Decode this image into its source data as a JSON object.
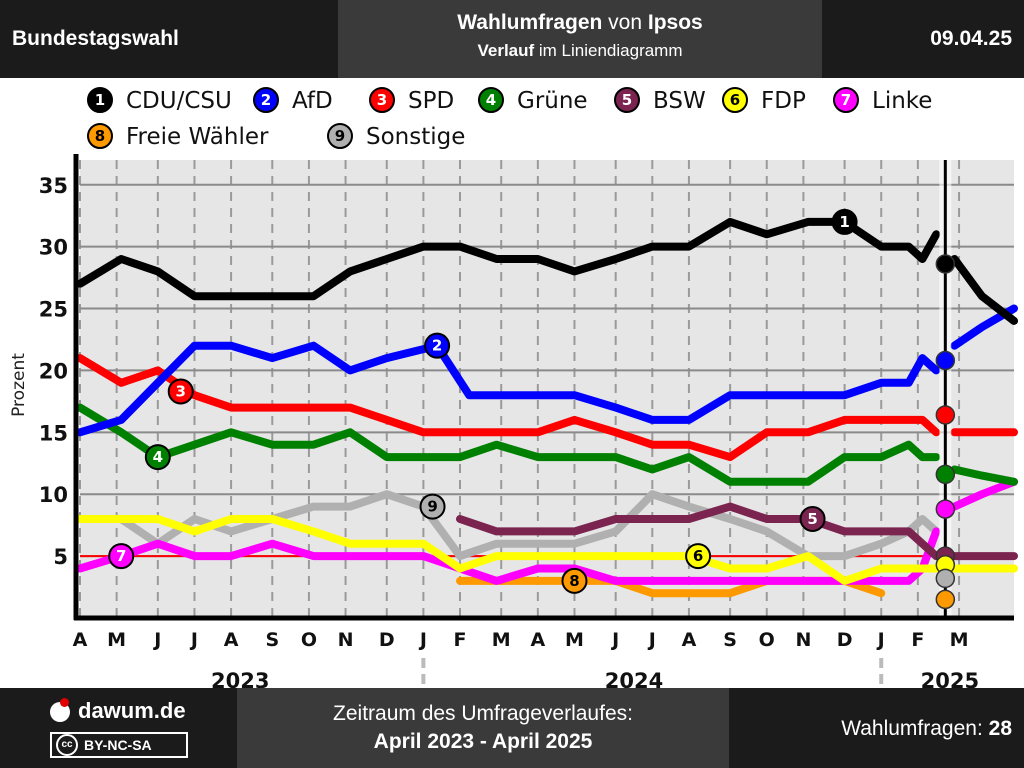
{
  "header": {
    "left": "Bundestagswahl",
    "title_bold_1": "Wahlumfragen",
    "title_connector": " von ",
    "title_bold_2": "Ipsos",
    "subtitle_bold": "Verlauf",
    "subtitle_rest": " im Liniendiagramm",
    "date": "09.04.25"
  },
  "footer": {
    "brand": "dawum.de",
    "license": "BY-NC-SA",
    "license_badge": "cc",
    "period_label": "Zeitraum des Umfrageverlaufes:",
    "period_value": "April 2023 - April 2025",
    "count_label": "Wahlumfragen: ",
    "count_value": "28"
  },
  "chart_data": {
    "type": "line",
    "title": "Wahlumfragen von Ipsos",
    "ylabel": "Prozent",
    "ylim": [
      0,
      37
    ],
    "yticks": [
      5,
      10,
      15,
      20,
      25,
      30,
      35
    ],
    "threshold": 5,
    "xlim": [
      2023.25,
      2025.29
    ],
    "month_ticks": [
      {
        "label": "A",
        "x": 2023.25
      },
      {
        "label": "M",
        "x": 2023.33
      },
      {
        "label": "J",
        "x": 2023.42
      },
      {
        "label": "J",
        "x": 2023.5
      },
      {
        "label": "A",
        "x": 2023.58
      },
      {
        "label": "S",
        "x": 2023.67
      },
      {
        "label": "O",
        "x": 2023.75
      },
      {
        "label": "N",
        "x": 2023.83
      },
      {
        "label": "D",
        "x": 2023.92
      },
      {
        "label": "J",
        "x": 2024.0
      },
      {
        "label": "F",
        "x": 2024.08
      },
      {
        "label": "M",
        "x": 2024.17
      },
      {
        "label": "A",
        "x": 2024.25
      },
      {
        "label": "M",
        "x": 2024.33
      },
      {
        "label": "J",
        "x": 2024.42
      },
      {
        "label": "J",
        "x": 2024.5
      },
      {
        "label": "A",
        "x": 2024.58
      },
      {
        "label": "S",
        "x": 2024.67
      },
      {
        "label": "O",
        "x": 2024.75
      },
      {
        "label": "N",
        "x": 2024.83
      },
      {
        "label": "D",
        "x": 2024.92
      },
      {
        "label": "J",
        "x": 2025.0
      },
      {
        "label": "F",
        "x": 2025.08
      },
      {
        "label": "M",
        "x": 2025.17
      }
    ],
    "year_labels": [
      {
        "label": "2023",
        "x": 2023.6
      },
      {
        "label": "2024",
        "x": 2024.46
      },
      {
        "label": "2025",
        "x": 2025.15
      }
    ],
    "year_dividers": [
      2024.0,
      2025.0
    ],
    "election": {
      "x": 2025.14
    },
    "series": [
      {
        "id": 1,
        "name": "CDU/CSU",
        "color": "#000000",
        "badge": 1,
        "points": [
          [
            2023.25,
            27
          ],
          [
            2023.34,
            29
          ],
          [
            2023.42,
            28
          ],
          [
            2023.5,
            26
          ],
          [
            2023.58,
            26
          ],
          [
            2023.67,
            26
          ],
          [
            2023.76,
            26
          ],
          [
            2023.84,
            28
          ],
          [
            2023.92,
            29
          ],
          [
            2024.0,
            30
          ],
          [
            2024.08,
            30
          ],
          [
            2024.16,
            29
          ],
          [
            2024.25,
            29
          ],
          [
            2024.33,
            28
          ],
          [
            2024.42,
            29
          ],
          [
            2024.5,
            30
          ],
          [
            2024.58,
            30
          ],
          [
            2024.67,
            32
          ],
          [
            2024.75,
            31
          ],
          [
            2024.84,
            32
          ],
          [
            2024.92,
            32
          ],
          [
            2025.0,
            30
          ],
          [
            2025.06,
            30
          ],
          [
            2025.09,
            29
          ],
          [
            2025.12,
            31
          ]
        ],
        "post": [
          [
            2025.16,
            29
          ],
          [
            2025.22,
            26
          ],
          [
            2025.29,
            24
          ]
        ],
        "result": 28.6,
        "label_at": [
          2024.92,
          32
        ]
      },
      {
        "id": 2,
        "name": "AfD",
        "color": "#0000ff",
        "badge": 2,
        "points": [
          [
            2023.25,
            15
          ],
          [
            2023.34,
            16
          ],
          [
            2023.42,
            19
          ],
          [
            2023.5,
            22
          ],
          [
            2023.58,
            22
          ],
          [
            2023.67,
            21
          ],
          [
            2023.76,
            22
          ],
          [
            2023.84,
            20
          ],
          [
            2023.92,
            21
          ],
          [
            2024.03,
            22
          ],
          [
            2024.1,
            18
          ],
          [
            2024.16,
            18
          ],
          [
            2024.25,
            18
          ],
          [
            2024.33,
            18
          ],
          [
            2024.42,
            17
          ],
          [
            2024.5,
            16
          ],
          [
            2024.58,
            16
          ],
          [
            2024.67,
            18
          ],
          [
            2024.75,
            18
          ],
          [
            2024.84,
            18
          ],
          [
            2024.92,
            18
          ],
          [
            2025.0,
            19
          ],
          [
            2025.06,
            19
          ],
          [
            2025.09,
            21
          ],
          [
            2025.12,
            20
          ]
        ],
        "post": [
          [
            2025.16,
            22
          ],
          [
            2025.22,
            23.5
          ],
          [
            2025.29,
            25
          ]
        ],
        "result": 20.8,
        "label_at": [
          2024.03,
          22
        ]
      },
      {
        "id": 3,
        "name": "SPD",
        "color": "#ff0000",
        "badge": 3,
        "points": [
          [
            2023.25,
            21
          ],
          [
            2023.34,
            19
          ],
          [
            2023.42,
            20
          ],
          [
            2023.5,
            18
          ],
          [
            2023.58,
            17
          ],
          [
            2023.67,
            17
          ],
          [
            2023.76,
            17
          ],
          [
            2023.84,
            17
          ],
          [
            2023.92,
            16
          ],
          [
            2024.0,
            15
          ],
          [
            2024.08,
            15
          ],
          [
            2024.16,
            15
          ],
          [
            2024.25,
            15
          ],
          [
            2024.33,
            16
          ],
          [
            2024.42,
            15
          ],
          [
            2024.5,
            14
          ],
          [
            2024.58,
            14
          ],
          [
            2024.67,
            13
          ],
          [
            2024.75,
            15
          ],
          [
            2024.84,
            15
          ],
          [
            2024.92,
            16
          ],
          [
            2025.0,
            16
          ],
          [
            2025.06,
            16
          ],
          [
            2025.09,
            16
          ],
          [
            2025.12,
            15
          ]
        ],
        "post": [
          [
            2025.16,
            15
          ],
          [
            2025.22,
            15
          ],
          [
            2025.29,
            15
          ]
        ],
        "result": 16.4,
        "label_at": [
          2023.47,
          18.3
        ]
      },
      {
        "id": 4,
        "name": "Grüne",
        "color": "#008000",
        "badge": 4,
        "points": [
          [
            2023.25,
            17
          ],
          [
            2023.34,
            15
          ],
          [
            2023.42,
            13
          ],
          [
            2023.5,
            14
          ],
          [
            2023.58,
            15
          ],
          [
            2023.67,
            14
          ],
          [
            2023.76,
            14
          ],
          [
            2023.84,
            15
          ],
          [
            2023.92,
            13
          ],
          [
            2024.0,
            13
          ],
          [
            2024.08,
            13
          ],
          [
            2024.16,
            14
          ],
          [
            2024.25,
            13
          ],
          [
            2024.33,
            13
          ],
          [
            2024.42,
            13
          ],
          [
            2024.5,
            12
          ],
          [
            2024.58,
            13
          ],
          [
            2024.67,
            11
          ],
          [
            2024.75,
            11
          ],
          [
            2024.84,
            11
          ],
          [
            2024.92,
            13
          ],
          [
            2025.0,
            13
          ],
          [
            2025.06,
            14
          ],
          [
            2025.09,
            13
          ],
          [
            2025.12,
            13
          ]
        ],
        "post": [
          [
            2025.16,
            12
          ],
          [
            2025.22,
            11.5
          ],
          [
            2025.29,
            11
          ]
        ],
        "result": 11.6,
        "label_at": [
          2023.42,
          13
        ]
      },
      {
        "id": 5,
        "name": "BSW",
        "color": "#7b2450",
        "badge": 5,
        "points": [
          [
            2024.08,
            8
          ],
          [
            2024.16,
            7
          ],
          [
            2024.25,
            7
          ],
          [
            2024.33,
            7
          ],
          [
            2024.42,
            8
          ],
          [
            2024.5,
            8
          ],
          [
            2024.58,
            8
          ],
          [
            2024.67,
            9
          ],
          [
            2024.75,
            8
          ],
          [
            2024.84,
            8
          ],
          [
            2024.92,
            7
          ],
          [
            2025.0,
            7
          ],
          [
            2025.06,
            7
          ],
          [
            2025.09,
            6
          ],
          [
            2025.12,
            5
          ]
        ],
        "post": [
          [
            2025.16,
            5
          ],
          [
            2025.22,
            5
          ],
          [
            2025.29,
            5
          ]
        ],
        "result": 5.0,
        "label_at": [
          2024.85,
          8
        ]
      },
      {
        "id": 6,
        "name": "FDP",
        "color": "#ffff00",
        "badge": 6,
        "points": [
          [
            2023.25,
            8
          ],
          [
            2023.34,
            8
          ],
          [
            2023.42,
            8
          ],
          [
            2023.5,
            7
          ],
          [
            2023.58,
            8
          ],
          [
            2023.67,
            8
          ],
          [
            2023.76,
            7
          ],
          [
            2023.84,
            6
          ],
          [
            2023.92,
            6
          ],
          [
            2024.0,
            6
          ],
          [
            2024.08,
            4
          ],
          [
            2024.16,
            5
          ],
          [
            2024.25,
            5
          ],
          [
            2024.33,
            5
          ],
          [
            2024.42,
            5
          ],
          [
            2024.5,
            5
          ],
          [
            2024.58,
            5
          ],
          [
            2024.67,
            4
          ],
          [
            2024.75,
            4
          ],
          [
            2024.84,
            5
          ],
          [
            2024.92,
            3
          ],
          [
            2025.0,
            4
          ],
          [
            2025.06,
            4
          ],
          [
            2025.09,
            4
          ],
          [
            2025.12,
            4
          ]
        ],
        "post": [
          [
            2025.16,
            4
          ],
          [
            2025.22,
            4
          ],
          [
            2025.29,
            4
          ]
        ],
        "result": 4.3,
        "label_at": [
          2024.6,
          5
        ]
      },
      {
        "id": 7,
        "name": "Linke",
        "color": "#ff00ff",
        "badge": 7,
        "points": [
          [
            2023.25,
            4
          ],
          [
            2023.34,
            5
          ],
          [
            2023.42,
            6
          ],
          [
            2023.5,
            5
          ],
          [
            2023.58,
            5
          ],
          [
            2023.67,
            6
          ],
          [
            2023.76,
            5
          ],
          [
            2023.84,
            5
          ],
          [
            2023.92,
            5
          ],
          [
            2024.0,
            5
          ],
          [
            2024.08,
            4
          ],
          [
            2024.16,
            3
          ],
          [
            2024.25,
            4
          ],
          [
            2024.33,
            4
          ],
          [
            2024.42,
            3
          ],
          [
            2024.5,
            3
          ],
          [
            2024.58,
            3
          ],
          [
            2024.67,
            3
          ],
          [
            2024.75,
            3
          ],
          [
            2024.84,
            3
          ],
          [
            2024.92,
            3
          ],
          [
            2025.0,
            3
          ],
          [
            2025.06,
            3
          ],
          [
            2025.09,
            4
          ],
          [
            2025.12,
            7
          ]
        ],
        "post": [
          [
            2025.16,
            9
          ],
          [
            2025.22,
            10
          ],
          [
            2025.29,
            11
          ]
        ],
        "result": 8.8,
        "label_at": [
          2023.34,
          5
        ]
      },
      {
        "id": 8,
        "name": "Freie Wähler",
        "color": "#ff9900",
        "badge": 8,
        "points": [
          [
            2024.08,
            3
          ],
          [
            2024.16,
            3
          ],
          [
            2024.25,
            3
          ],
          [
            2024.33,
            3
          ],
          [
            2024.42,
            3
          ],
          [
            2024.5,
            2
          ],
          [
            2024.58,
            2
          ],
          [
            2024.67,
            2
          ],
          [
            2024.75,
            3
          ],
          [
            2024.84,
            3
          ],
          [
            2024.92,
            3
          ],
          [
            2025.0,
            2
          ]
        ],
        "post": [],
        "result": 1.5,
        "label_at": [
          2024.33,
          3
        ]
      },
      {
        "id": 9,
        "name": "Sonstige",
        "color": "#b0b0b0",
        "badge": 9,
        "points": [
          [
            2023.25,
            8
          ],
          [
            2023.34,
            8
          ],
          [
            2023.42,
            6
          ],
          [
            2023.5,
            8
          ],
          [
            2023.58,
            7
          ],
          [
            2023.67,
            8
          ],
          [
            2023.76,
            9
          ],
          [
            2023.84,
            9
          ],
          [
            2023.92,
            10
          ],
          [
            2024.0,
            9
          ],
          [
            2024.08,
            5
          ],
          [
            2024.16,
            6
          ],
          [
            2024.25,
            6
          ],
          [
            2024.33,
            6
          ],
          [
            2024.42,
            7
          ],
          [
            2024.5,
            10
          ],
          [
            2024.58,
            9
          ],
          [
            2024.67,
            8
          ],
          [
            2024.75,
            7
          ],
          [
            2024.84,
            5
          ],
          [
            2024.92,
            5
          ],
          [
            2025.0,
            6
          ],
          [
            2025.06,
            7
          ],
          [
            2025.09,
            8
          ],
          [
            2025.12,
            7
          ]
        ],
        "post": [],
        "result": 3.2,
        "label_at": [
          2024.02,
          9
        ]
      }
    ]
  }
}
